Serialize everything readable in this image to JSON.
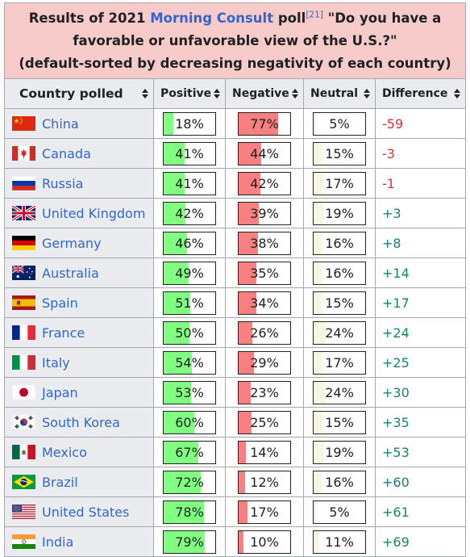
{
  "caption": {
    "prefix": "Results of 2021 ",
    "link": "Morning Consult",
    "mid": " poll",
    "ref": "[21]",
    "question": " \"Do you have a favorable or unfavorable view of the U.S.?\"",
    "note": "(default-sorted by decreasing negativity of each country)"
  },
  "headers": [
    "Country polled",
    "Positive",
    "Negative",
    "Neutral",
    "Difference"
  ],
  "colors": {
    "positive": "#80ff80",
    "negative": "#f88080",
    "neutral": "#f6f6e3",
    "diff_negative": "#dd3333",
    "diff_positive": "#14866d",
    "link": "#3366cc",
    "caption_bg": "#f8cbcb"
  },
  "rows": [
    {
      "country": "China",
      "flag": "china-flag-icon",
      "positive": "18%",
      "negative": "77%",
      "neutral": "5%",
      "difference": "-59"
    },
    {
      "country": "Canada",
      "flag": "canada-flag-icon",
      "positive": "41%",
      "negative": "44%",
      "neutral": "15%",
      "difference": "-3"
    },
    {
      "country": "Russia",
      "flag": "russia-flag-icon",
      "positive": "41%",
      "negative": "42%",
      "neutral": "17%",
      "difference": "-1"
    },
    {
      "country": "United Kingdom",
      "flag": "uk-flag-icon",
      "positive": "42%",
      "negative": "39%",
      "neutral": "19%",
      "difference": "+3"
    },
    {
      "country": "Germany",
      "flag": "germany-flag-icon",
      "positive": "46%",
      "negative": "38%",
      "neutral": "16%",
      "difference": "+8"
    },
    {
      "country": "Australia",
      "flag": "australia-flag-icon",
      "positive": "49%",
      "negative": "35%",
      "neutral": "16%",
      "difference": "+14"
    },
    {
      "country": "Spain",
      "flag": "spain-flag-icon",
      "positive": "51%",
      "negative": "34%",
      "neutral": "15%",
      "difference": "+17"
    },
    {
      "country": "France",
      "flag": "france-flag-icon",
      "positive": "50%",
      "negative": "26%",
      "neutral": "24%",
      "difference": "+24"
    },
    {
      "country": "Italy",
      "flag": "italy-flag-icon",
      "positive": "54%",
      "negative": "29%",
      "neutral": "17%",
      "difference": "+25"
    },
    {
      "country": "Japan",
      "flag": "japan-flag-icon",
      "positive": "53%",
      "negative": "23%",
      "neutral": "24%",
      "difference": "+30"
    },
    {
      "country": "South Korea",
      "flag": "south-korea-flag-icon",
      "positive": "60%",
      "negative": "25%",
      "neutral": "15%",
      "difference": "+35"
    },
    {
      "country": "Mexico",
      "flag": "mexico-flag-icon",
      "positive": "67%",
      "negative": "14%",
      "neutral": "19%",
      "difference": "+53"
    },
    {
      "country": "Brazil",
      "flag": "brazil-flag-icon",
      "positive": "72%",
      "negative": "12%",
      "neutral": "16%",
      "difference": "+60"
    },
    {
      "country": "United States",
      "flag": "usa-flag-icon",
      "positive": "78%",
      "negative": "17%",
      "neutral": "5%",
      "difference": "+61"
    },
    {
      "country": "India",
      "flag": "india-flag-icon",
      "positive": "79%",
      "negative": "10%",
      "neutral": "11%",
      "difference": "+69"
    }
  ]
}
